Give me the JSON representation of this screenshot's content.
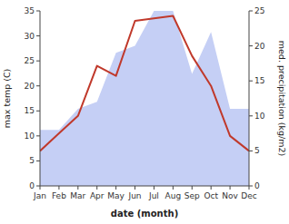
{
  "chart_data": {
    "type": "line",
    "categories": [
      "Jan",
      "Feb",
      "Mar",
      "Apr",
      "May",
      "Jun",
      "Jul",
      "Aug",
      "Sep",
      "Oct",
      "Nov",
      "Dec"
    ],
    "series": [
      {
        "type": "area",
        "color": "#c5cff5",
        "axis": "y2",
        "values": [
          8,
          8,
          11,
          12,
          19,
          20,
          25,
          25,
          16,
          22,
          11,
          11
        ]
      },
      {
        "type": "line",
        "color": "#c0392b",
        "axis": "y",
        "values": [
          7,
          10.5,
          14,
          24,
          22,
          33,
          33.5,
          34,
          26,
          20,
          10,
          7
        ]
      }
    ],
    "xlabel": "date (month)",
    "ylabel": "max temp (C)",
    "y2label": "med. precipitation (kg/m2)",
    "ylim": [
      0,
      35
    ],
    "yticks": [
      0,
      5,
      10,
      15,
      20,
      25,
      30,
      35
    ],
    "y2lim": [
      0,
      25
    ],
    "y2ticks": [
      0,
      5,
      10,
      15,
      20,
      25
    ],
    "grid": false
  }
}
